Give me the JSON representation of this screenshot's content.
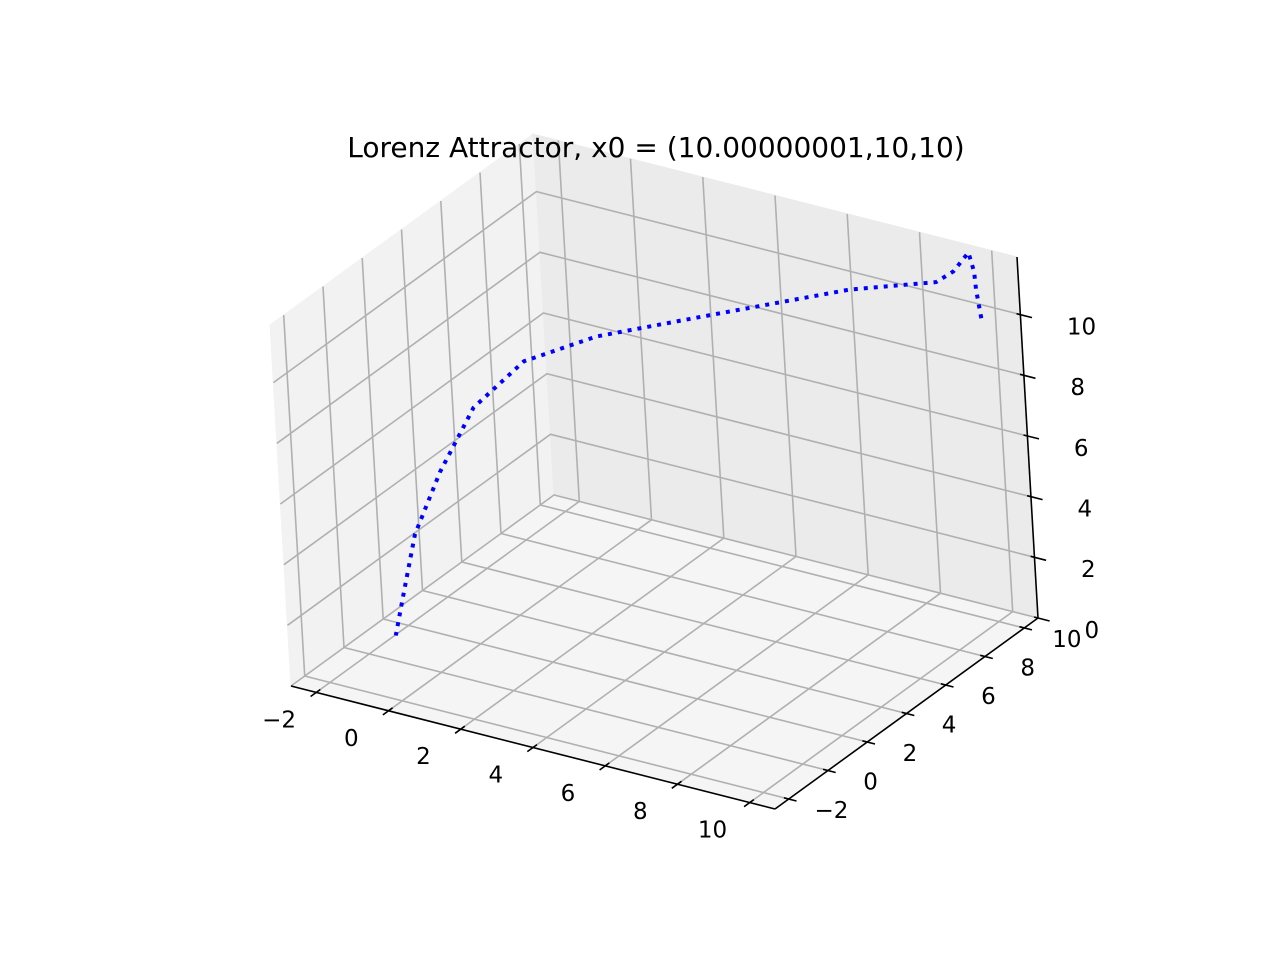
{
  "chart_data": {
    "type": "line3d",
    "title": "Lorenz Attractor, x0 = (10.00000001,10,10)",
    "xlabel": "",
    "ylabel": "",
    "zlabel": "",
    "x_ticks": [
      "−2",
      "0",
      "2",
      "4",
      "6",
      "8",
      "10"
    ],
    "y_ticks": [
      "−2",
      "0",
      "2",
      "4",
      "6",
      "8",
      "10"
    ],
    "z_ticks": [
      "0",
      "2",
      "4",
      "6",
      "8",
      "10"
    ],
    "xlim": [
      -2.7,
      10.7
    ],
    "ylim": [
      -2.7,
      10.7
    ],
    "zlim": [
      0,
      11.9
    ],
    "grid": true,
    "series": [
      {
        "line_style": "dotted",
        "color": "#0000ff",
        "points": [
          {
            "x": 10.0,
            "y": 10.0,
            "z": 10.0
          },
          {
            "x": 9.9,
            "y": 10.0,
            "z": 10.9
          },
          {
            "x": 9.7,
            "y": 10.3,
            "z": 11.3
          },
          {
            "x": 9.4,
            "y": 10.6,
            "z": 11.7
          },
          {
            "x": 9.0,
            "y": 10.5,
            "z": 11.0
          },
          {
            "x": 8.5,
            "y": 10.5,
            "z": 10.5
          },
          {
            "x": 6.4,
            "y": 9.9,
            "z": 9.9
          },
          {
            "x": 3.2,
            "y": 8.9,
            "z": 8.6
          },
          {
            "x": 0.3,
            "y": 8.0,
            "z": 7.4
          },
          {
            "x": -1.2,
            "y": 7.0,
            "z": 6.6
          },
          {
            "x": -2.0,
            "y": 5.8,
            "z": 5.4
          },
          {
            "x": -2.3,
            "y": 4.5,
            "z": 3.8
          },
          {
            "x": -2.3,
            "y": 3.1,
            "z": 2.4
          },
          {
            "x": -2.0,
            "y": 1.8,
            "z": 1.0
          },
          {
            "x": -1.8,
            "y": 1.0,
            "z": 0.2
          }
        ]
      }
    ]
  }
}
